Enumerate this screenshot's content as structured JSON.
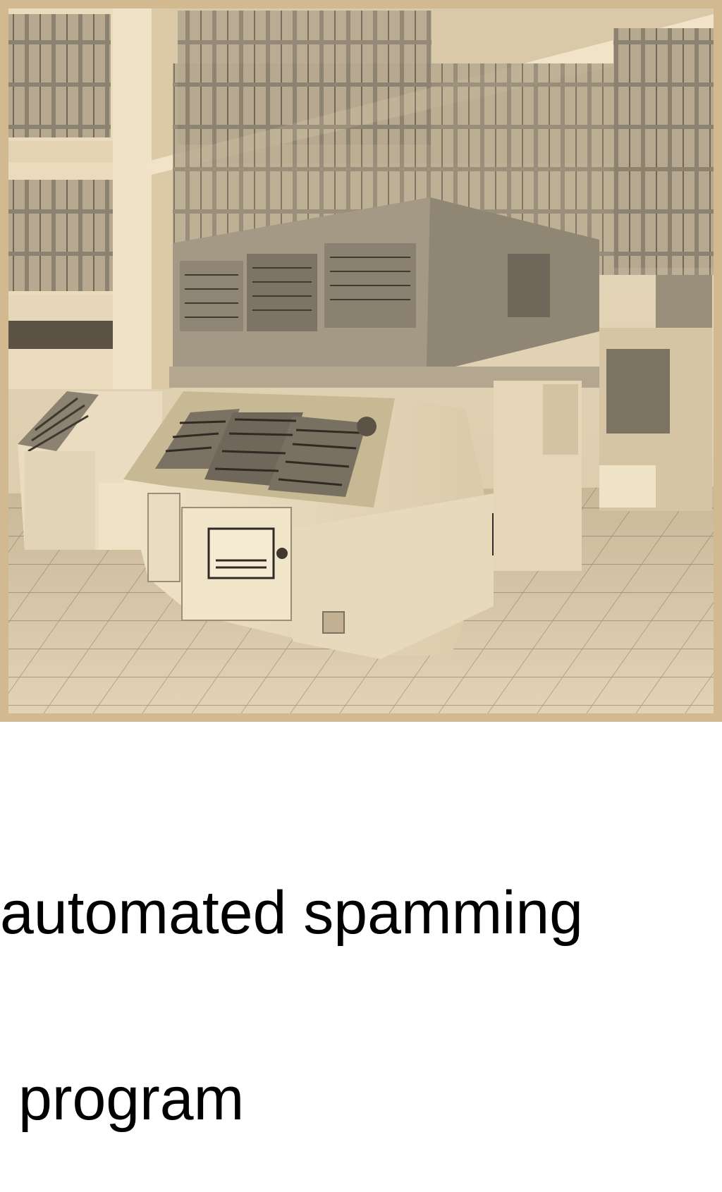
{
  "caption": {
    "line1": "automated spamming",
    "line2": "program"
  },
  "colors": {
    "sepia_border": "#d2b98f",
    "sepia_light": "#f2e6cc",
    "sepia_mid": "#c6b391",
    "sepia_dark": "#4e463a",
    "caption_text": "#000000",
    "background": "#ffffff"
  }
}
